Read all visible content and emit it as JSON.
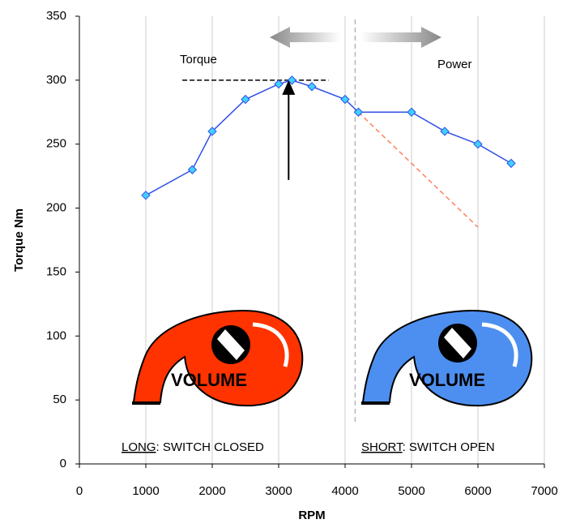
{
  "chart_data": {
    "type": "line",
    "y_label": "Torque Nm",
    "x_label": "RPM",
    "x": [
      1000,
      1700,
      2000,
      2500,
      3000,
      3200,
      3500,
      4000,
      4200,
      5000,
      5500,
      6000,
      6500
    ],
    "series": [
      {
        "color": "#3050e8",
        "marker_color": "#40d0ff",
        "values": [
          210,
          230,
          260,
          285,
          297,
          300,
          295,
          285,
          275,
          275,
          260,
          250,
          235
        ]
      }
    ],
    "projection": {
      "x": [
        4200,
        6000
      ],
      "values": [
        275,
        185
      ],
      "color": "#ff8060"
    },
    "peak_line": {
      "xlim": [
        1550,
        3750
      ],
      "value": 300
    },
    "arrow": {
      "x": 3150,
      "from": 222,
      "to": 300
    },
    "divider": {
      "x": 4150,
      "ylim": [
        33,
        350
      ]
    },
    "xlim": [
      0,
      7000
    ],
    "ylim": [
      0,
      350
    ],
    "xticks": [
      0,
      1000,
      2000,
      3000,
      4000,
      5000,
      6000,
      7000
    ],
    "yticks": [
      0,
      50,
      100,
      150,
      200,
      250,
      300,
      350
    ],
    "grid": "x",
    "annotations": {
      "torque": "Torque",
      "power": "Power",
      "long_mode": {
        "key": "LONG",
        "rest": ": SWITCH CLOSED"
      },
      "short_mode": {
        "key": "SHORT",
        "rest": ": SWITCH OPEN"
      },
      "volume_left": "VOLUME",
      "volume_right": "VOLUME"
    }
  }
}
